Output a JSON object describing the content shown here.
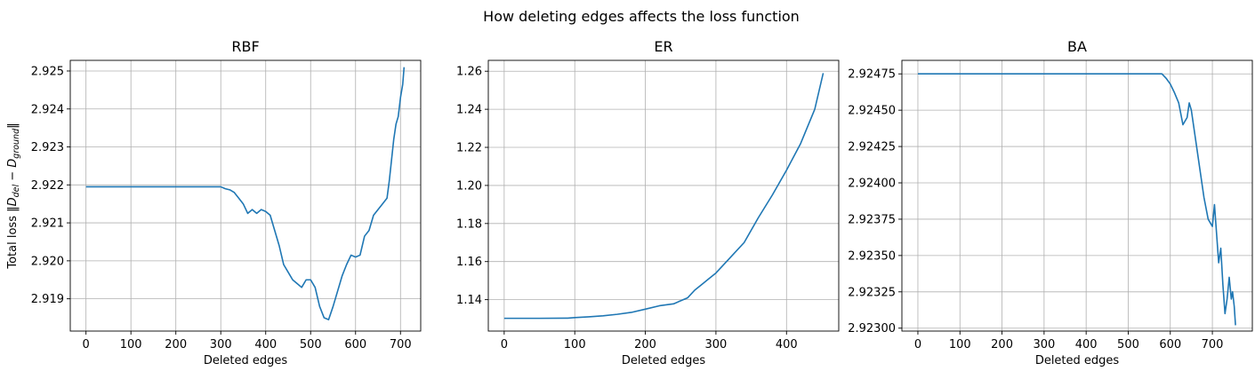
{
  "figure": {
    "suptitle": "How deleting edges affects the loss function"
  },
  "colors": {
    "line": "#1f77b4",
    "grid": "#b0b0b0",
    "axes": "#000000",
    "background": "#ffffff"
  },
  "chart_data": [
    {
      "type": "line",
      "title": "RBF",
      "xlabel": "Deleted edges",
      "ylabel": "Total loss ‖D_del − D_ground‖",
      "ylabel_parts": [
        "Total loss ‖",
        "D",
        "del",
        " − ",
        "D",
        "ground",
        "‖"
      ],
      "grid": true,
      "xlim": [
        -35,
        745
      ],
      "ylim": [
        2.91815,
        2.92528
      ],
      "xticks": [
        0,
        100,
        200,
        300,
        400,
        500,
        600,
        700
      ],
      "xtick_labels": [
        "0",
        "100",
        "200",
        "300",
        "400",
        "500",
        "600",
        "700"
      ],
      "yticks": [
        2.919,
        2.92,
        2.921,
        2.922,
        2.923,
        2.924,
        2.925
      ],
      "ytick_labels": [
        "2.919",
        "2.920",
        "2.921",
        "2.922",
        "2.923",
        "2.924",
        "2.925"
      ],
      "series": [
        {
          "x": [
            0,
            100,
            200,
            300,
            310,
            320,
            330,
            340,
            350,
            360,
            370,
            380,
            390,
            400,
            410,
            420,
            430,
            440,
            450,
            460,
            470,
            480,
            490,
            500,
            510,
            520,
            530,
            540,
            550,
            560,
            570,
            580,
            590,
            600,
            610,
            620,
            630,
            640,
            650,
            660,
            670,
            675,
            680,
            685,
            690,
            695,
            700,
            705,
            708
          ],
          "y": [
            2.92195,
            2.92195,
            2.92195,
            2.92195,
            2.9219,
            2.92187,
            2.9218,
            2.92165,
            2.9215,
            2.92125,
            2.92135,
            2.92125,
            2.92135,
            2.9213,
            2.9212,
            2.9208,
            2.9204,
            2.9199,
            2.9197,
            2.9195,
            2.9194,
            2.9193,
            2.9195,
            2.9195,
            2.9193,
            2.9188,
            2.9185,
            2.91845,
            2.9188,
            2.9192,
            2.9196,
            2.9199,
            2.92015,
            2.9201,
            2.92015,
            2.92065,
            2.9208,
            2.9212,
            2.92135,
            2.9215,
            2.92165,
            2.9221,
            2.92265,
            2.9232,
            2.9236,
            2.9238,
            2.9243,
            2.92465,
            2.9251
          ]
        }
      ]
    },
    {
      "type": "line",
      "title": "ER",
      "xlabel": "Deleted edges",
      "ylabel": "",
      "grid": true,
      "xlim": [
        -22.5,
        474
      ],
      "ylim": [
        1.1235,
        1.2657
      ],
      "xticks": [
        0,
        100,
        200,
        300,
        400
      ],
      "xtick_labels": [
        "0",
        "100",
        "200",
        "300",
        "400"
      ],
      "yticks": [
        1.14,
        1.16,
        1.18,
        1.2,
        1.22,
        1.24,
        1.26
      ],
      "ytick_labels": [
        "1.14",
        "1.16",
        "1.18",
        "1.20",
        "1.22",
        "1.24",
        "1.26"
      ],
      "series": [
        {
          "x": [
            0,
            50,
            90,
            100,
            120,
            140,
            160,
            180,
            200,
            220,
            240,
            260,
            270,
            280,
            290,
            300,
            320,
            340,
            360,
            380,
            400,
            420,
            440,
            452
          ],
          "y": [
            1.1302,
            1.1302,
            1.1303,
            1.1306,
            1.131,
            1.1315,
            1.1323,
            1.1333,
            1.135,
            1.1368,
            1.1378,
            1.141,
            1.145,
            1.148,
            1.151,
            1.154,
            1.162,
            1.17,
            1.183,
            1.195,
            1.208,
            1.222,
            1.24,
            1.259
          ]
        }
      ]
    },
    {
      "type": "line",
      "title": "BA",
      "xlabel": "Deleted edges",
      "ylabel": "",
      "grid": true,
      "xlim": [
        -38,
        795
      ],
      "ylim": [
        2.92298,
        2.924843
      ],
      "xticks": [
        0,
        100,
        200,
        300,
        400,
        500,
        600,
        700
      ],
      "xtick_labels": [
        "0",
        "100",
        "200",
        "300",
        "400",
        "500",
        "600",
        "700"
      ],
      "yticks": [
        2.923,
        2.92325,
        2.9235,
        2.92375,
        2.924,
        2.92425,
        2.9245,
        2.92475
      ],
      "ytick_labels": [
        "2.92300",
        "2.92325",
        "2.92350",
        "2.92375",
        "2.92400",
        "2.92425",
        "2.92450",
        "2.92475"
      ],
      "series": [
        {
          "x": [
            0,
            200,
            400,
            580,
            590,
            600,
            610,
            620,
            630,
            640,
            645,
            650,
            660,
            670,
            680,
            690,
            700,
            705,
            710,
            715,
            720,
            725,
            730,
            735,
            740,
            745,
            748,
            752,
            755
          ],
          "y": [
            2.92475,
            2.92475,
            2.92475,
            2.92475,
            2.92472,
            2.92468,
            2.92462,
            2.92455,
            2.9244,
            2.92445,
            2.92455,
            2.9245,
            2.9243,
            2.9241,
            2.9239,
            2.92375,
            2.9237,
            2.92385,
            2.92365,
            2.92345,
            2.92355,
            2.9233,
            2.9231,
            2.9232,
            2.92335,
            2.9232,
            2.92325,
            2.92315,
            2.92302
          ]
        }
      ]
    }
  ]
}
